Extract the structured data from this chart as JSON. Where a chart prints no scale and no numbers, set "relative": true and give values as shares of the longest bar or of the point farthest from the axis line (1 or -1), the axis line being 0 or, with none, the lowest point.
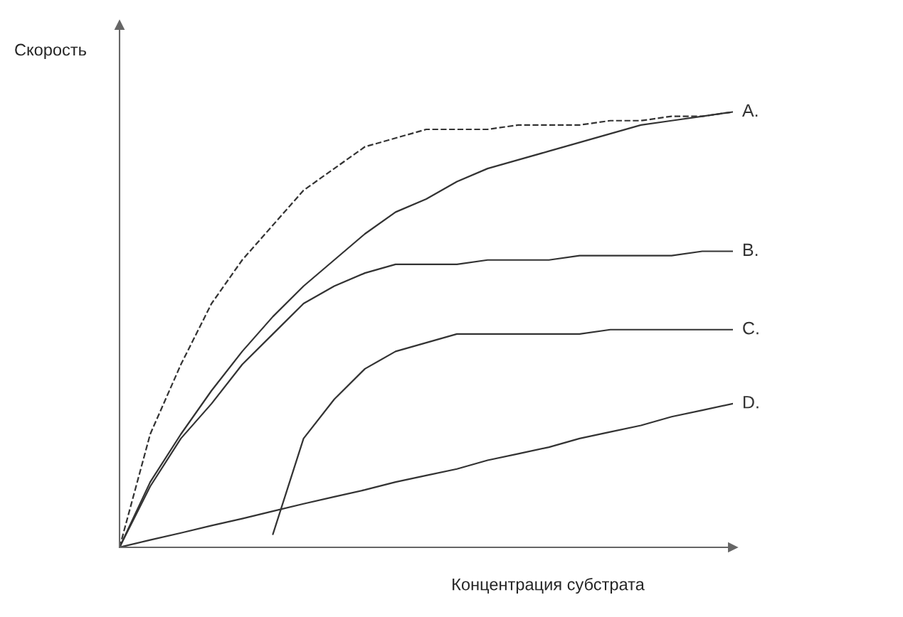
{
  "chart_data": {
    "type": "line",
    "relative": true,
    "xlabel": "Концентрация субстрата",
    "ylabel": "Скорость",
    "categories": [
      null,
      null,
      null,
      null,
      null,
      null,
      null,
      null,
      null,
      null,
      null,
      null,
      null,
      null,
      null,
      null,
      null,
      null,
      null,
      null,
      null
    ],
    "series": [
      {
        "color": "#333333",
        "line_style": "dashed",
        "values": [
          0,
          0.26,
          0.42,
          0.56,
          0.66,
          0.74,
          0.82,
          0.87,
          0.92,
          0.94,
          0.96,
          0.96,
          0.96,
          0.97,
          0.97,
          0.97,
          0.98,
          0.98,
          0.99,
          0.99,
          1
        ]
      },
      {
        "name": "A.",
        "color": "#333333",
        "line_style": "solid",
        "values": [
          0,
          0.15,
          0.26,
          0.36,
          0.45,
          0.53,
          0.6,
          0.66,
          0.72,
          0.77,
          0.8,
          0.84,
          0.87,
          0.89,
          0.91,
          0.93,
          0.95,
          0.97,
          0.98,
          0.99,
          1
        ]
      },
      {
        "name": "B.",
        "color": "#333333",
        "line_style": "solid",
        "values": [
          0,
          0.14,
          0.25,
          0.33,
          0.42,
          0.49,
          0.56,
          0.6,
          0.63,
          0.65,
          0.65,
          0.65,
          0.66,
          0.66,
          0.66,
          0.67,
          0.67,
          0.67,
          0.67,
          0.68,
          0.68
        ]
      },
      {
        "name": "C.",
        "color": "#333333",
        "line_style": "solid",
        "values": [
          null,
          null,
          null,
          null,
          null,
          0.03,
          0.25,
          0.34,
          0.41,
          0.45,
          0.47,
          0.49,
          0.49,
          0.49,
          0.49,
          0.49,
          0.5,
          0.5,
          0.5,
          0.5,
          0.5
        ]
      },
      {
        "name": "D.",
        "color": "#333333",
        "line_style": "solid",
        "values": [
          0,
          0.017,
          0.033,
          0.05,
          0.066,
          0.083,
          0.1,
          0.116,
          0.132,
          0.15,
          0.165,
          0.18,
          0.2,
          0.215,
          0.23,
          0.25,
          0.265,
          0.28,
          0.3,
          0.315,
          0.33
        ]
      }
    ]
  }
}
